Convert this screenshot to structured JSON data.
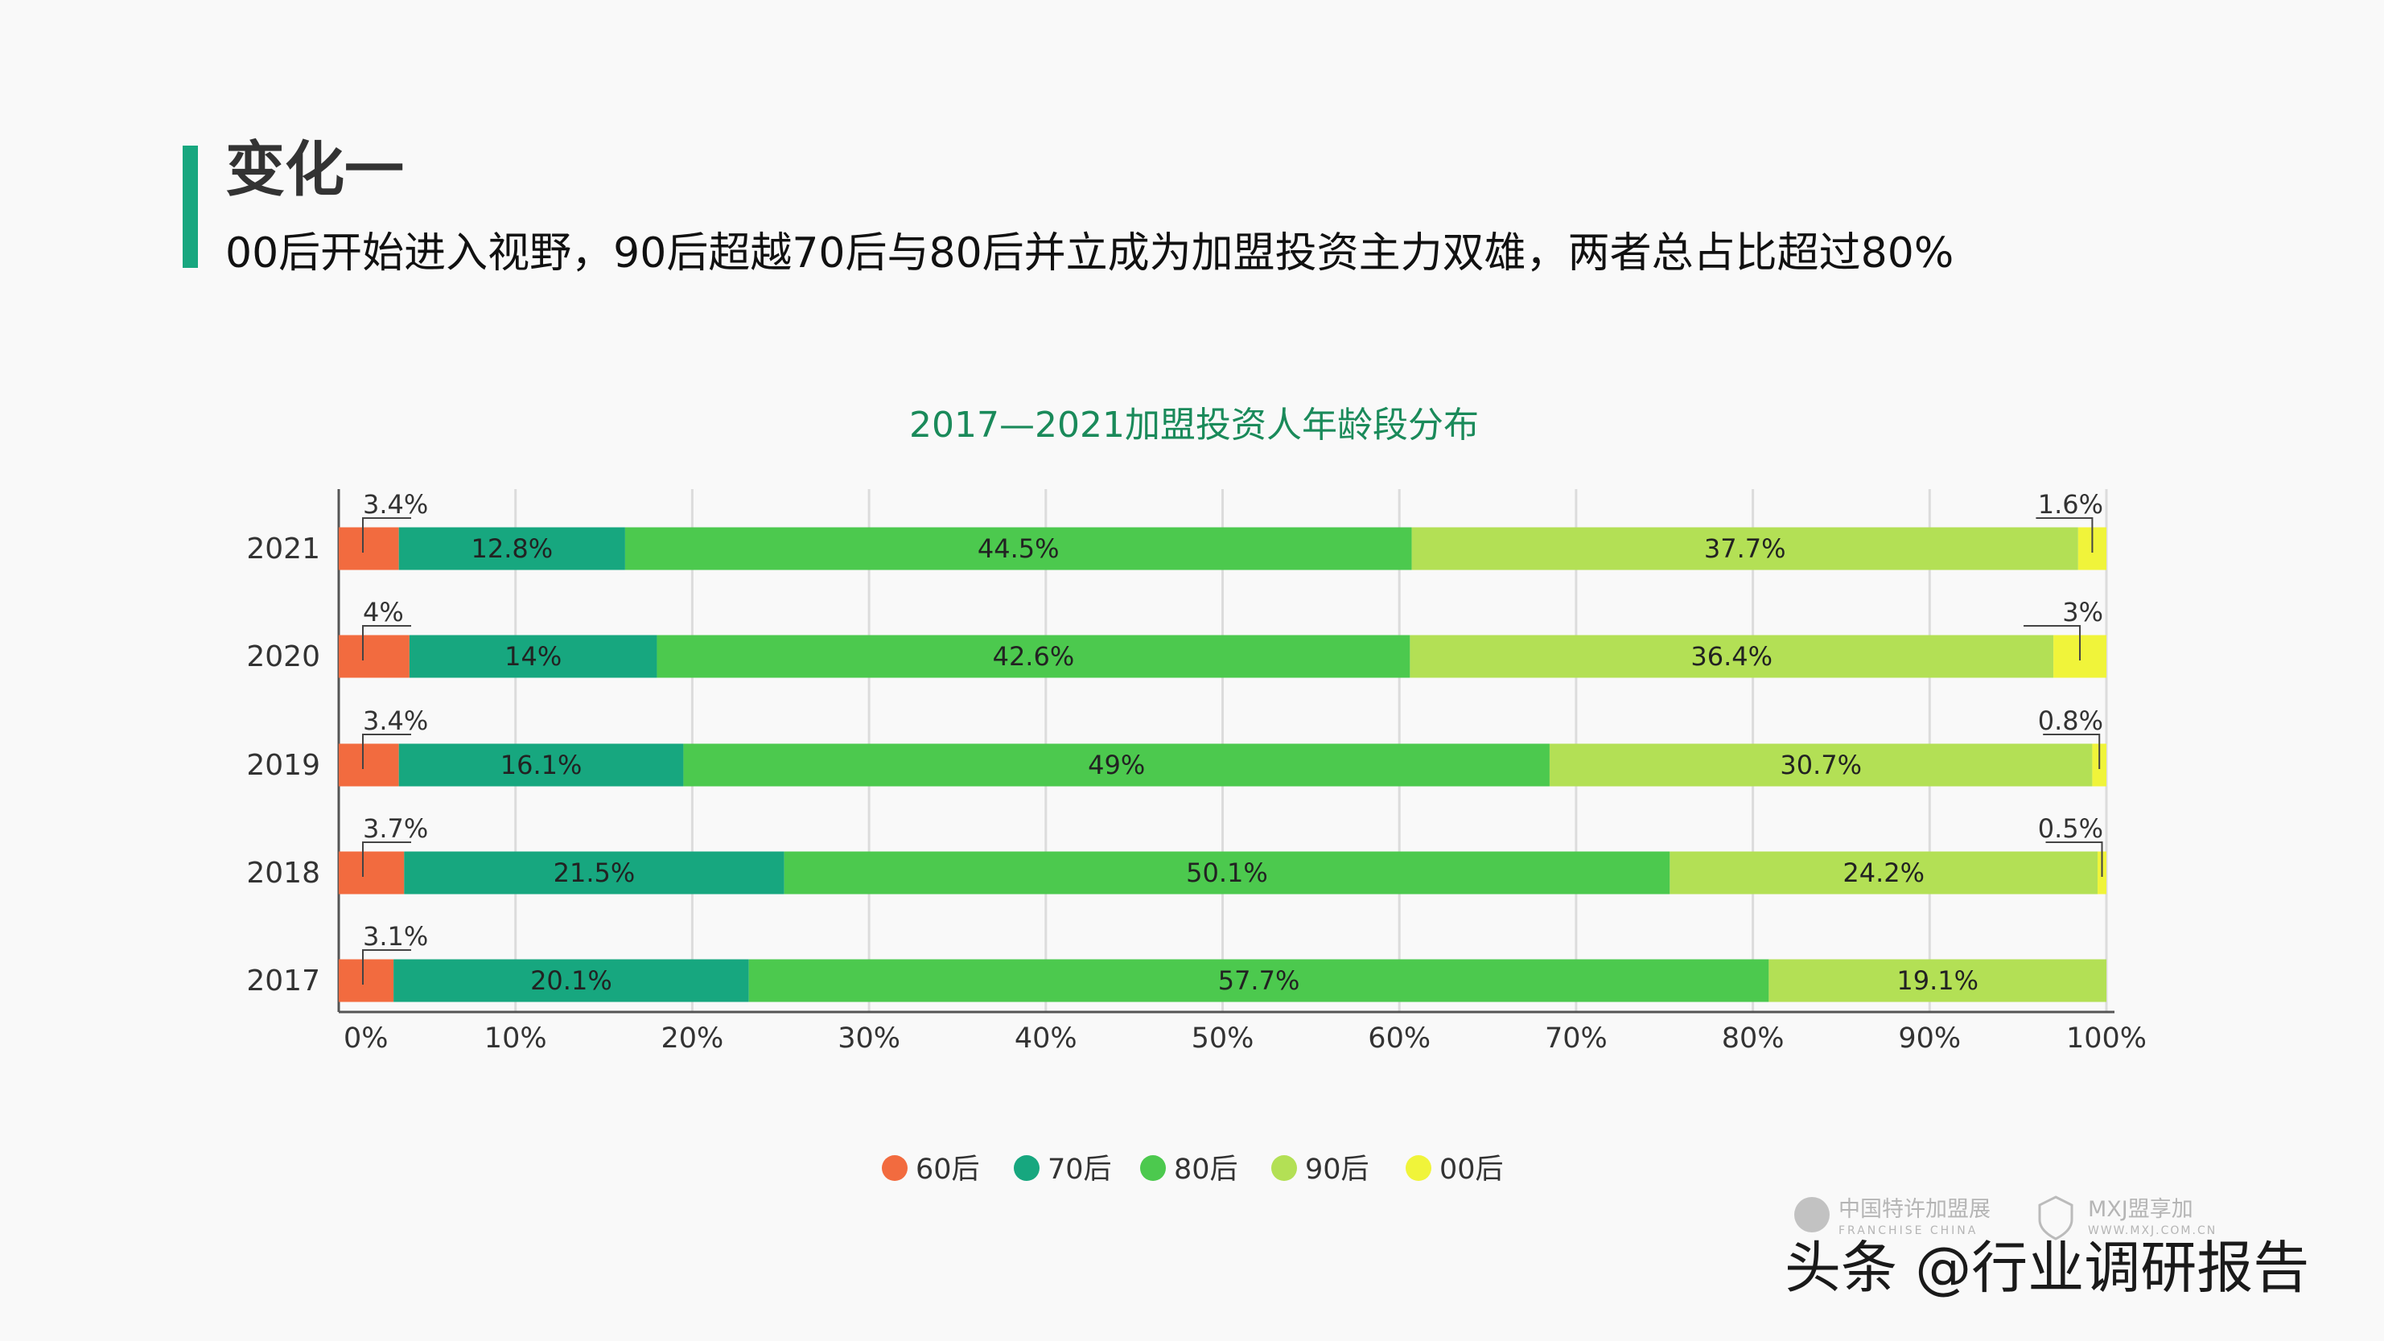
{
  "header": {
    "title": "变化一",
    "subtitle": "00后开始进入视野，90后超越70后与80后并立成为加盟投资主力双雄，两者总占比超过80%",
    "accent_color": "#17a77f"
  },
  "watermark": {
    "logo1_cn": "中国特许加盟展",
    "logo1_en": "FRANCHISE CHINA",
    "logo2_cn": "MXJ盟享加",
    "logo2_en": "WWW.MXJ.COM.CN",
    "source": "头条 @行业调研报告"
  },
  "chart_data": {
    "type": "bar",
    "orientation": "horizontal",
    "stacked": "percent",
    "title": "2017—2021加盟投资人年龄段分布",
    "title_color": "#1a8a5a",
    "categories": [
      "2021",
      "2020",
      "2019",
      "2018",
      "2017"
    ],
    "series": [
      {
        "name": "60后",
        "color": "#f26b3f",
        "values": [
          3.4,
          4,
          3.4,
          3.7,
          3.1
        ],
        "labels": [
          "3.4%",
          "4%",
          "3.4%",
          "3.7%",
          "3.1%"
        ]
      },
      {
        "name": "70后",
        "color": "#17a77f",
        "values": [
          12.8,
          14,
          16.1,
          21.5,
          20.1
        ],
        "labels": [
          "12.8%",
          "14%",
          "16.1%",
          "21.5%",
          "20.1%"
        ]
      },
      {
        "name": "80后",
        "color": "#4cc94e",
        "values": [
          44.5,
          42.6,
          49,
          50.1,
          57.7
        ],
        "labels": [
          "44.5%",
          "42.6%",
          "49%",
          "50.1%",
          "57.7%"
        ]
      },
      {
        "name": "90后",
        "color": "#b3e055",
        "values": [
          37.7,
          36.4,
          30.7,
          24.2,
          19.1
        ],
        "labels": [
          "37.7%",
          "36.4%",
          "30.7%",
          "24.2%",
          "19.1%"
        ]
      },
      {
        "name": "00后",
        "color": "#f0f43a",
        "values": [
          1.6,
          3,
          0.8,
          0.5,
          0
        ],
        "labels": [
          "1.6%",
          "3%",
          "0.8%",
          "0.5%",
          ""
        ]
      }
    ],
    "xlim": [
      0,
      100
    ],
    "xticks": [
      "0%",
      "10%",
      "20%",
      "30%",
      "40%",
      "50%",
      "60%",
      "70%",
      "80%",
      "90%",
      "100%"
    ],
    "grid": true,
    "legend": "bottom"
  }
}
